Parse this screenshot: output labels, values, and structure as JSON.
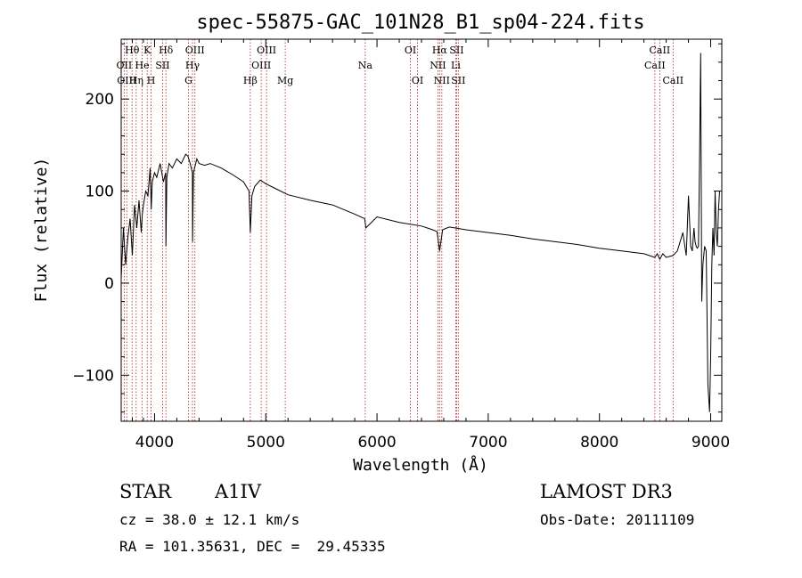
{
  "chart_data": {
    "type": "line",
    "title": "spec-55875-GAC_101N28_B1_sp04-224.fits",
    "xlabel": "Wavelength (Å)",
    "ylabel": "Flux (relative)",
    "xlim": [
      3700,
      9100
    ],
    "ylim": [
      -150,
      265
    ],
    "xticks": [
      4000,
      5000,
      6000,
      7000,
      8000,
      9000
    ],
    "yticks": [
      -100,
      0,
      100,
      200
    ],
    "grid": false,
    "series": [
      {
        "name": "flux",
        "x": [
          3700,
          3720,
          3740,
          3760,
          3780,
          3800,
          3820,
          3840,
          3860,
          3880,
          3890,
          3900,
          3920,
          3940,
          3960,
          3970,
          3980,
          4000,
          4020,
          4050,
          4080,
          4100,
          4102,
          4110,
          4130,
          4160,
          4200,
          4240,
          4280,
          4300,
          4320,
          4340,
          4342,
          4350,
          4380,
          4400,
          4450,
          4500,
          4600,
          4700,
          4800,
          4850,
          4861,
          4875,
          4900,
          4950,
          5000,
          5100,
          5200,
          5400,
          5600,
          5800,
          5890,
          5900,
          6000,
          6200,
          6400,
          6500,
          6540,
          6563,
          6590,
          6650,
          6800,
          7000,
          7200,
          7400,
          7600,
          7800,
          8000,
          8200,
          8400,
          8498,
          8520,
          8542,
          8570,
          8600,
          8662,
          8700,
          8750,
          8780,
          8800,
          8820,
          8835,
          8850,
          8860,
          8870,
          8880,
          8890,
          8900,
          8910,
          8920,
          8930,
          8945,
          8960,
          8975,
          8990,
          9000,
          9010,
          9020,
          9030,
          9040,
          9050,
          9060,
          9070,
          9080
        ],
        "y": [
          5,
          60,
          20,
          50,
          70,
          30,
          85,
          60,
          90,
          55,
          75,
          85,
          100,
          95,
          125,
          80,
          110,
          120,
          115,
          130,
          110,
          120,
          40,
          115,
          130,
          125,
          135,
          130,
          140,
          138,
          130,
          120,
          45,
          120,
          135,
          130,
          128,
          130,
          125,
          118,
          110,
          100,
          55,
          95,
          105,
          112,
          108,
          102,
          96,
          90,
          85,
          75,
          70,
          60,
          72,
          66,
          62,
          58,
          56,
          35,
          58,
          61,
          58,
          55,
          52,
          48,
          45,
          42,
          38,
          35,
          32,
          28,
          32,
          26,
          32,
          28,
          30,
          35,
          55,
          30,
          95,
          40,
          35,
          60,
          45,
          40,
          38,
          40,
          130,
          250,
          -20,
          20,
          40,
          35,
          -110,
          -140,
          -80,
          20,
          60,
          30,
          100,
          55,
          40,
          80,
          100
        ]
      }
    ],
    "line_markers": [
      {
        "label": "Hθ",
        "wavelength": 3798,
        "row": 1
      },
      {
        "label": "OII",
        "wavelength": 3727,
        "row": 2
      },
      {
        "label": "OIII",
        "wavelength": 3750,
        "row": 3
      },
      {
        "label": "K",
        "wavelength": 3934,
        "row": 1
      },
      {
        "label": "He",
        "wavelength": 3889,
        "row": 2
      },
      {
        "label": "Hη",
        "wavelength": 3835,
        "row": 3
      },
      {
        "label": "Hδ",
        "wavelength": 4102,
        "row": 1
      },
      {
        "label": "SII",
        "wavelength": 4072,
        "row": 2
      },
      {
        "label": "H",
        "wavelength": 3969,
        "row": 3
      },
      {
        "label": "OIII",
        "wavelength": 4363,
        "row": 1
      },
      {
        "label": "Hγ",
        "wavelength": 4341,
        "row": 2
      },
      {
        "label": "G",
        "wavelength": 4305,
        "row": 3
      },
      {
        "label": "OIII",
        "wavelength": 5007,
        "row": 1
      },
      {
        "label": "OIII",
        "wavelength": 4959,
        "row": 2
      },
      {
        "label": "Hβ",
        "wavelength": 4861,
        "row": 3
      },
      {
        "label": "Mg",
        "wavelength": 5175,
        "row": 3
      },
      {
        "label": "Na",
        "wavelength": 5894,
        "row": 2
      },
      {
        "label": "OI",
        "wavelength": 6300,
        "row": 1
      },
      {
        "label": "OI",
        "wavelength": 6364,
        "row": 3
      },
      {
        "label": "Hα",
        "wavelength": 6563,
        "row": 1
      },
      {
        "label": "NII",
        "wavelength": 6548,
        "row": 2
      },
      {
        "label": "NII",
        "wavelength": 6583,
        "row": 3
      },
      {
        "label": "SII",
        "wavelength": 6716,
        "row": 1
      },
      {
        "label": "Li",
        "wavelength": 6708,
        "row": 2
      },
      {
        "label": "SII",
        "wavelength": 6731,
        "row": 3
      },
      {
        "label": "CaII",
        "wavelength": 8542,
        "row": 1
      },
      {
        "label": "CaII",
        "wavelength": 8498,
        "row": 2
      },
      {
        "label": "CaII",
        "wavelength": 8662,
        "row": 3
      }
    ],
    "colors": {
      "spectrum": "#000000",
      "marker_line": "#b22222",
      "axes": "#000000"
    }
  },
  "info": {
    "class": "STAR",
    "subclass": "A1IV",
    "survey": "LAMOST DR3",
    "cz": "cz = 38.0 ± 12.1 km/s",
    "obs_date": "Obs-Date: 20111109",
    "coords": "RA = 101.35631, DEC =  29.45335"
  }
}
